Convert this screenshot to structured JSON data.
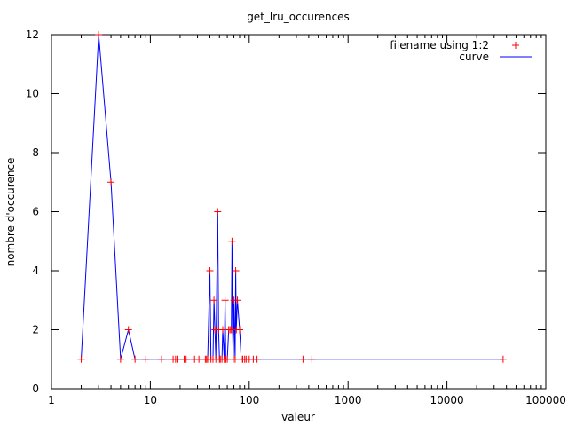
{
  "chart_data": {
    "type": "line",
    "title": "get_lru_occurences",
    "xlabel": "valeur",
    "ylabel": "nombre d'occurence",
    "x_scale": "log",
    "xlim": [
      1,
      100000
    ],
    "ylim": [
      0,
      12
    ],
    "x_ticks": [
      1,
      10,
      100,
      1000,
      10000,
      100000
    ],
    "x_tick_labels": [
      "1",
      "10",
      "100",
      "1000",
      "10000",
      "100000"
    ],
    "y_ticks": [
      0,
      2,
      4,
      6,
      8,
      10,
      12
    ],
    "y_tick_labels": [
      "0",
      "2",
      "4",
      "6",
      "8",
      "10",
      "12"
    ],
    "grid": false,
    "legend_position": "top-right",
    "colors": {
      "points": "#ff0000",
      "curve": "#0000ff",
      "axes": "#000000"
    },
    "series": [
      {
        "name": "filename using 1:2",
        "style": "points-plus"
      },
      {
        "name": "curve",
        "style": "line"
      }
    ],
    "points": [
      [
        2,
        1
      ],
      [
        3,
        12
      ],
      [
        4,
        7
      ],
      [
        5,
        1
      ],
      [
        6,
        2
      ],
      [
        7,
        1
      ],
      [
        9,
        1
      ],
      [
        13,
        1
      ],
      [
        17,
        1
      ],
      [
        18,
        1
      ],
      [
        19,
        1
      ],
      [
        22,
        1
      ],
      [
        23,
        1
      ],
      [
        28,
        1
      ],
      [
        31,
        1
      ],
      [
        36,
        1
      ],
      [
        37,
        1
      ],
      [
        38,
        1
      ],
      [
        40,
        4
      ],
      [
        41,
        1
      ],
      [
        43,
        1
      ],
      [
        44,
        3
      ],
      [
        45,
        2
      ],
      [
        46,
        1
      ],
      [
        48,
        6
      ],
      [
        49,
        2
      ],
      [
        50,
        1
      ],
      [
        51,
        1
      ],
      [
        53,
        1
      ],
      [
        54,
        2
      ],
      [
        56,
        1
      ],
      [
        57,
        3
      ],
      [
        58,
        1
      ],
      [
        60,
        1
      ],
      [
        62,
        2
      ],
      [
        64,
        2
      ],
      [
        66,
        2
      ],
      [
        67,
        5
      ],
      [
        68,
        2
      ],
      [
        69,
        1
      ],
      [
        70,
        3
      ],
      [
        72,
        1
      ],
      [
        73,
        4
      ],
      [
        74,
        2
      ],
      [
        76,
        3
      ],
      [
        80,
        2
      ],
      [
        83,
        1
      ],
      [
        86,
        1
      ],
      [
        90,
        1
      ],
      [
        93,
        1
      ],
      [
        100,
        1
      ],
      [
        110,
        1
      ],
      [
        120,
        1
      ],
      [
        350,
        1
      ],
      [
        430,
        1
      ],
      [
        37000,
        1
      ]
    ]
  }
}
